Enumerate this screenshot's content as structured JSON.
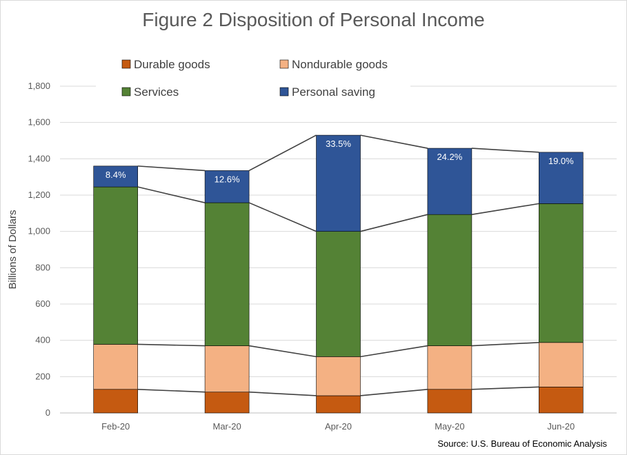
{
  "chart_data": {
    "type": "bar",
    "stacked": true,
    "title": "Figure 2 Disposition of Personal Income",
    "ylabel": "Billions of Dollars",
    "xlabel": "",
    "ylim": [
      0,
      1800
    ],
    "yticks": [
      0,
      200,
      400,
      600,
      800,
      1000,
      1200,
      1400,
      1600,
      1800
    ],
    "ytick_labels": [
      "0",
      "200",
      "400",
      "600",
      "800",
      "1,000",
      "1,200",
      "1,400",
      "1,600",
      "1,800"
    ],
    "categories": [
      "Feb-20",
      "Mar-20",
      "Apr-20",
      "May-20",
      "Jun-20"
    ],
    "series": [
      {
        "name": "Durable goods",
        "color": "#c55a11",
        "values": [
          130,
          115,
          95,
          130,
          143
        ]
      },
      {
        "name": "Nondurable goods",
        "color": "#f4b183",
        "values": [
          248,
          255,
          215,
          240,
          245
        ]
      },
      {
        "name": "Services",
        "color": "#548235",
        "values": [
          867,
          788,
          690,
          723,
          765
        ]
      },
      {
        "name": "Personal saving",
        "color": "#2f5597",
        "values": [
          115,
          177,
          530,
          365,
          283
        ],
        "labels": [
          "8.4%",
          "12.6%",
          "33.5%",
          "24.2%",
          "19.0%"
        ]
      }
    ],
    "grid": true,
    "legend_position": "top",
    "connector_lines": true
  },
  "source_text": "Source: U.S. Bureau of Economic Analysis"
}
